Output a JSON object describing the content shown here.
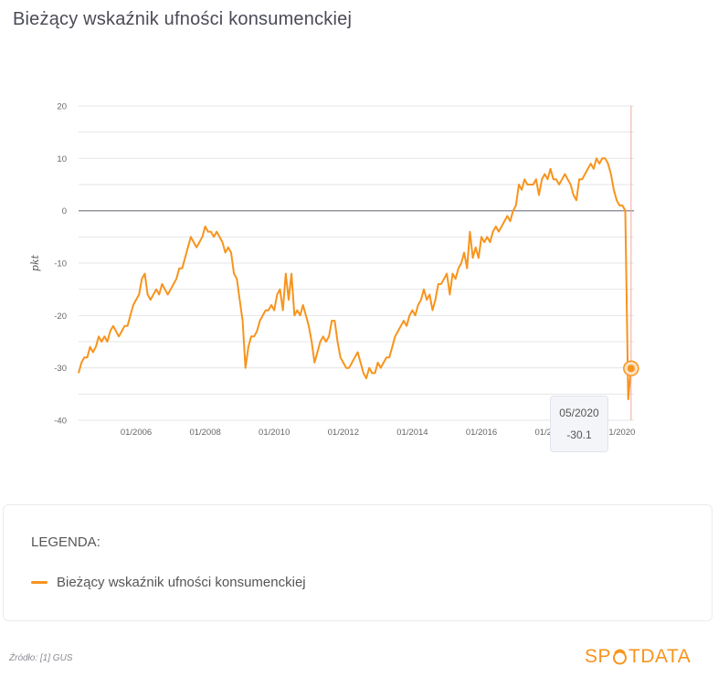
{
  "page": {
    "title": "Bieżący wskaźnik ufności konsumenckiej",
    "source": "Źródło: [1] GUS",
    "brand_left": "SP",
    "brand_right": "TDATA"
  },
  "tooltip": {
    "date": "05/2020",
    "value": "-30.1"
  },
  "legend": {
    "title": "LEGENDA:",
    "items": [
      {
        "label": "Bieżący wskaźnik ufności konsumenckiej",
        "color": "#f7941d"
      }
    ]
  },
  "chart_data": {
    "type": "line",
    "title": "",
    "xlabel": "",
    "ylabel": "pkt",
    "ylim": [
      -40,
      20
    ],
    "yticks": [
      20,
      10,
      0,
      -10,
      -20,
      -30,
      -40
    ],
    "xticks": [
      "01/2006",
      "01/2008",
      "01/2010",
      "01/2012",
      "01/2014",
      "01/2016",
      "01/2018",
      "01/2020"
    ],
    "grid": true,
    "highlight": {
      "x": "2020-05",
      "y": -30.1
    },
    "series": [
      {
        "name": "Bieżący wskaźnik ufności konsumenckiej",
        "color": "#f7941d",
        "points": [
          [
            "2004-05",
            -31
          ],
          [
            "2004-06",
            -29
          ],
          [
            "2004-07",
            -28
          ],
          [
            "2004-08",
            -28
          ],
          [
            "2004-09",
            -26
          ],
          [
            "2004-10",
            -27
          ],
          [
            "2004-11",
            -26
          ],
          [
            "2004-12",
            -24
          ],
          [
            "2005-01",
            -25
          ],
          [
            "2005-02",
            -24
          ],
          [
            "2005-03",
            -25
          ],
          [
            "2005-04",
            -23
          ],
          [
            "2005-05",
            -22
          ],
          [
            "2005-06",
            -23
          ],
          [
            "2005-07",
            -24
          ],
          [
            "2005-08",
            -23
          ],
          [
            "2005-09",
            -22
          ],
          [
            "2005-10",
            -22
          ],
          [
            "2005-11",
            -20
          ],
          [
            "2005-12",
            -18
          ],
          [
            "2006-01",
            -17
          ],
          [
            "2006-02",
            -16
          ],
          [
            "2006-03",
            -13
          ],
          [
            "2006-04",
            -12
          ],
          [
            "2006-05",
            -16
          ],
          [
            "2006-06",
            -17
          ],
          [
            "2006-07",
            -16
          ],
          [
            "2006-08",
            -15
          ],
          [
            "2006-09",
            -16
          ],
          [
            "2006-10",
            -14
          ],
          [
            "2006-11",
            -15
          ],
          [
            "2006-12",
            -16
          ],
          [
            "2007-01",
            -15
          ],
          [
            "2007-02",
            -14
          ],
          [
            "2007-03",
            -13
          ],
          [
            "2007-04",
            -11
          ],
          [
            "2007-05",
            -11
          ],
          [
            "2007-06",
            -9
          ],
          [
            "2007-07",
            -7
          ],
          [
            "2007-08",
            -5
          ],
          [
            "2007-09",
            -6
          ],
          [
            "2007-10",
            -7
          ],
          [
            "2007-11",
            -6
          ],
          [
            "2007-12",
            -5
          ],
          [
            "2008-01",
            -3
          ],
          [
            "2008-02",
            -4
          ],
          [
            "2008-03",
            -4
          ],
          [
            "2008-04",
            -5
          ],
          [
            "2008-05",
            -4
          ],
          [
            "2008-06",
            -5
          ],
          [
            "2008-07",
            -6
          ],
          [
            "2008-08",
            -8
          ],
          [
            "2008-09",
            -7
          ],
          [
            "2008-10",
            -8
          ],
          [
            "2008-11",
            -12
          ],
          [
            "2008-12",
            -13
          ],
          [
            "2009-01",
            -17
          ],
          [
            "2009-02",
            -21
          ],
          [
            "2009-03",
            -30
          ],
          [
            "2009-04",
            -26
          ],
          [
            "2009-05",
            -24
          ],
          [
            "2009-06",
            -24
          ],
          [
            "2009-07",
            -23
          ],
          [
            "2009-08",
            -21
          ],
          [
            "2009-09",
            -20
          ],
          [
            "2009-10",
            -19
          ],
          [
            "2009-11",
            -19
          ],
          [
            "2009-12",
            -18
          ],
          [
            "2010-01",
            -19
          ],
          [
            "2010-02",
            -16
          ],
          [
            "2010-03",
            -15
          ],
          [
            "2010-04",
            -19
          ],
          [
            "2010-05",
            -12
          ],
          [
            "2010-06",
            -17
          ],
          [
            "2010-07",
            -12
          ],
          [
            "2010-08",
            -20
          ],
          [
            "2010-09",
            -19
          ],
          [
            "2010-10",
            -20
          ],
          [
            "2010-11",
            -18
          ],
          [
            "2010-12",
            -20
          ],
          [
            "2011-01",
            -22
          ],
          [
            "2011-02",
            -25
          ],
          [
            "2011-03",
            -29
          ],
          [
            "2011-04",
            -27
          ],
          [
            "2011-05",
            -25
          ],
          [
            "2011-06",
            -24
          ],
          [
            "2011-07",
            -25
          ],
          [
            "2011-08",
            -24
          ],
          [
            "2011-09",
            -21
          ],
          [
            "2011-10",
            -21
          ],
          [
            "2011-11",
            -25
          ],
          [
            "2011-12",
            -28
          ],
          [
            "2012-01",
            -29
          ],
          [
            "2012-02",
            -30
          ],
          [
            "2012-03",
            -30
          ],
          [
            "2012-04",
            -29
          ],
          [
            "2012-05",
            -28
          ],
          [
            "2012-06",
            -27
          ],
          [
            "2012-07",
            -29
          ],
          [
            "2012-08",
            -31
          ],
          [
            "2012-09",
            -32
          ],
          [
            "2012-10",
            -30
          ],
          [
            "2012-11",
            -31
          ],
          [
            "2012-12",
            -31
          ],
          [
            "2013-01",
            -29
          ],
          [
            "2013-02",
            -30
          ],
          [
            "2013-03",
            -29
          ],
          [
            "2013-04",
            -28
          ],
          [
            "2013-05",
            -28
          ],
          [
            "2013-06",
            -26
          ],
          [
            "2013-07",
            -24
          ],
          [
            "2013-08",
            -23
          ],
          [
            "2013-09",
            -22
          ],
          [
            "2013-10",
            -21
          ],
          [
            "2013-11",
            -22
          ],
          [
            "2013-12",
            -20
          ],
          [
            "2014-01",
            -19
          ],
          [
            "2014-02",
            -20
          ],
          [
            "2014-03",
            -18
          ],
          [
            "2014-04",
            -17
          ],
          [
            "2014-05",
            -15
          ],
          [
            "2014-06",
            -17
          ],
          [
            "2014-07",
            -16
          ],
          [
            "2014-08",
            -19
          ],
          [
            "2014-09",
            -17
          ],
          [
            "2014-10",
            -14
          ],
          [
            "2014-11",
            -14
          ],
          [
            "2014-12",
            -13
          ],
          [
            "2015-01",
            -12
          ],
          [
            "2015-02",
            -16
          ],
          [
            "2015-03",
            -12
          ],
          [
            "2015-04",
            -13
          ],
          [
            "2015-05",
            -11
          ],
          [
            "2015-06",
            -10
          ],
          [
            "2015-07",
            -8
          ],
          [
            "2015-08",
            -11
          ],
          [
            "2015-09",
            -4
          ],
          [
            "2015-10",
            -9
          ],
          [
            "2015-11",
            -7
          ],
          [
            "2015-12",
            -9
          ],
          [
            "2016-01",
            -5
          ],
          [
            "2016-02",
            -6
          ],
          [
            "2016-03",
            -5
          ],
          [
            "2016-04",
            -6
          ],
          [
            "2016-05",
            -4
          ],
          [
            "2016-06",
            -3
          ],
          [
            "2016-07",
            -4
          ],
          [
            "2016-08",
            -3
          ],
          [
            "2016-09",
            -2
          ],
          [
            "2016-10",
            -1
          ],
          [
            "2016-11",
            -2
          ],
          [
            "2016-12",
            0
          ],
          [
            "2017-01",
            1
          ],
          [
            "2017-02",
            5
          ],
          [
            "2017-03",
            4
          ],
          [
            "2017-04",
            6
          ],
          [
            "2017-05",
            5
          ],
          [
            "2017-06",
            5
          ],
          [
            "2017-07",
            5
          ],
          [
            "2017-08",
            6
          ],
          [
            "2017-09",
            3
          ],
          [
            "2017-10",
            6
          ],
          [
            "2017-11",
            7
          ],
          [
            "2017-12",
            6
          ],
          [
            "2018-01",
            8
          ],
          [
            "2018-02",
            6
          ],
          [
            "2018-03",
            6
          ],
          [
            "2018-04",
            5
          ],
          [
            "2018-05",
            6
          ],
          [
            "2018-06",
            7
          ],
          [
            "2018-07",
            6
          ],
          [
            "2018-08",
            5
          ],
          [
            "2018-09",
            3
          ],
          [
            "2018-10",
            2
          ],
          [
            "2018-11",
            6
          ],
          [
            "2018-12",
            6
          ],
          [
            "2019-01",
            7
          ],
          [
            "2019-02",
            8
          ],
          [
            "2019-03",
            9
          ],
          [
            "2019-04",
            8
          ],
          [
            "2019-05",
            10
          ],
          [
            "2019-06",
            9
          ],
          [
            "2019-07",
            10
          ],
          [
            "2019-08",
            10
          ],
          [
            "2019-09",
            9
          ],
          [
            "2019-10",
            7
          ],
          [
            "2019-11",
            4
          ],
          [
            "2019-12",
            2
          ],
          [
            "2020-01",
            1
          ],
          [
            "2020-02",
            1
          ],
          [
            "2020-03",
            0
          ],
          [
            "2020-04",
            -36
          ],
          [
            "2020-05",
            -30.1
          ]
        ]
      }
    ]
  }
}
